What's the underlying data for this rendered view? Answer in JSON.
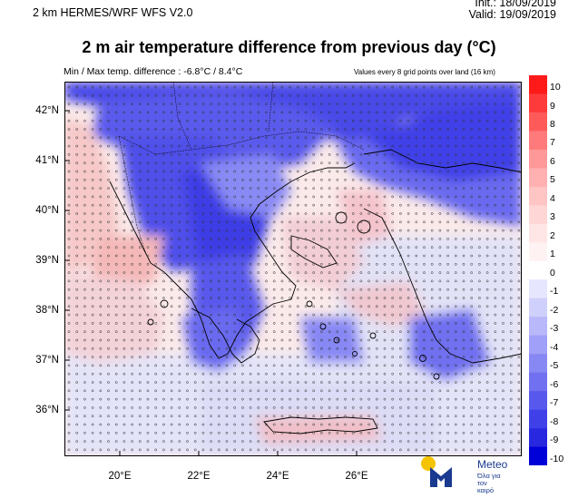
{
  "header": {
    "model": "2 km HERMES/WRF WFS V2.0",
    "init": "Init.: 18/09/2019",
    "valid": "Valid: 19/09/2019"
  },
  "title": "2 m air temperature difference from previous day (°C)",
  "subtitle_left": "Min / Max temp. difference : -6.8°C / 8.4°C",
  "subtitle_right": "Values every 8 grid points over land (16 km)",
  "map": {
    "lat_labels": [
      "42°N",
      "41°N",
      "40°N",
      "39°N",
      "38°N",
      "37°N",
      "36°N"
    ],
    "lon_labels": [
      "20°E",
      "22°E",
      "24°E",
      "26°E"
    ]
  },
  "colorbar": {
    "labels": [
      "10",
      "9",
      "8",
      "7",
      "6",
      "5",
      "4",
      "3",
      "2",
      "1",
      "0",
      "-1",
      "-2",
      "-3",
      "-4",
      "-5",
      "-6",
      "-7",
      "-8",
      "-9",
      "-10"
    ],
    "colors": [
      "#ff1a1a",
      "#ff3a3a",
      "#ff5a5a",
      "#ff7a7a",
      "#ff9898",
      "#ffb0b0",
      "#ffc4c4",
      "#ffd6d6",
      "#ffe6e6",
      "#fff2f2",
      "#ffffff",
      "#e6e6ff",
      "#d0d0fc",
      "#b8b8fa",
      "#a0a0f8",
      "#8888f4",
      "#7070f0",
      "#5858ec",
      "#4040e8",
      "#2828e0",
      "#0000d8"
    ]
  },
  "logo": {
    "name": "Meteo",
    "tagline_1": "Όλα για",
    "tagline_2": "τον καιρό"
  }
}
